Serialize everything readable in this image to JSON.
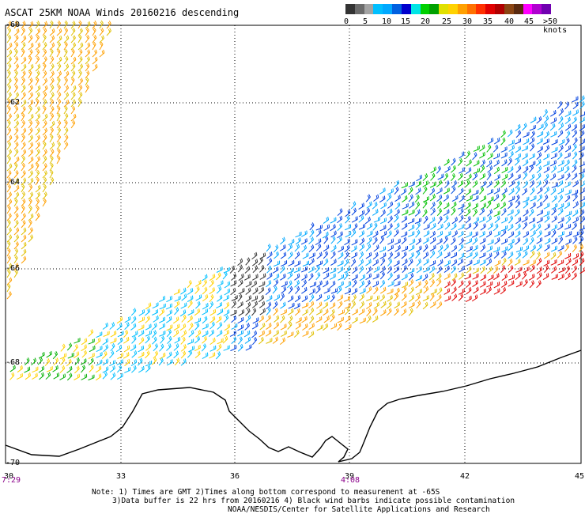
{
  "title": "ASCAT 25KM NOAA Winds 20160216 descending",
  "legend": {
    "colors": [
      "#333333",
      "#6b6b6b",
      "#a3a3a3",
      "#00bfff",
      "#00a8ff",
      "#0060e0",
      "#0000cd",
      "#00e5e5",
      "#00d000",
      "#00a000",
      "#e0e000",
      "#ffd200",
      "#ffa000",
      "#ff7000",
      "#ff3000",
      "#e00000",
      "#b00000",
      "#8b4513",
      "#5a2a10",
      "#ff00ff",
      "#b000d0",
      "#7000b0"
    ],
    "labels": [
      "0",
      "5",
      "10",
      "15",
      "20",
      "25",
      "30",
      "35",
      "40",
      "45",
      ">50 knots"
    ]
  },
  "lat_labels": [
    "-60",
    "-62",
    "-64",
    "-66",
    "-68",
    "-70"
  ],
  "lon_labels": [
    "30",
    "33",
    "36",
    "39",
    "42",
    "45"
  ],
  "time_labels": [
    "7:29",
    "4:08"
  ],
  "notes": [
    "Note: 1) Times are GMT 2)Times along bottom correspond to measurement at -65S",
    "3)Data buffer is 22 hrs from 20160216 4) Black wind barbs indicate possible contamination",
    "NOAA/NESDIS/Center for Satellite Applications and Research"
  ]
}
